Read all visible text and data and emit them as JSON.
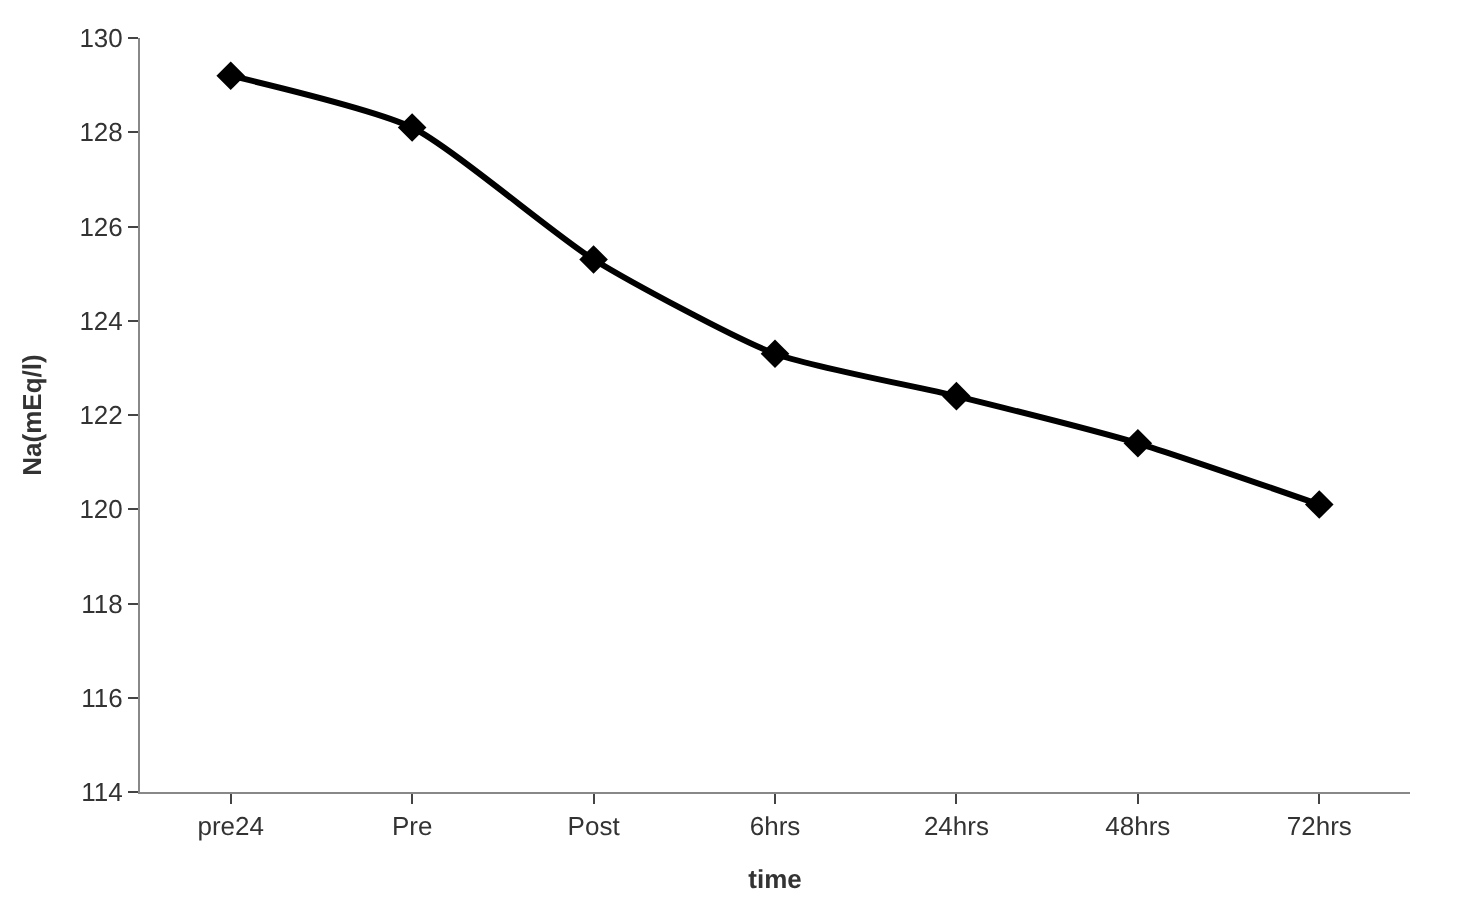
{
  "chart_data": {
    "type": "line",
    "xlabel": "time",
    "ylabel": "Na(mEq/l)",
    "categories": [
      "pre24",
      "Pre",
      "Post",
      "6hrs",
      "24hrs",
      "48hrs",
      "72hrs"
    ],
    "series": [
      {
        "color": "#000000",
        "values": [
          129.2,
          128.1,
          125.3,
          123.3,
          122.4,
          121.4,
          120.1
        ]
      }
    ],
    "ylim": [
      114,
      130
    ],
    "yticks": [
      114,
      116,
      118,
      120,
      122,
      124,
      126,
      128,
      130
    ],
    "legend": false,
    "marker": "diamond",
    "line_style": "solid"
  }
}
